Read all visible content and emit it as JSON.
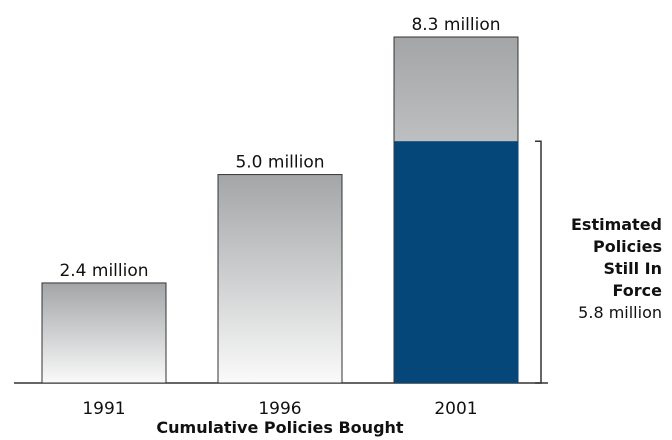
{
  "chart_data": {
    "type": "bar",
    "categories": [
      "1991",
      "1996",
      "2001"
    ],
    "values": [
      2.4,
      5.0,
      8.3
    ],
    "value_labels": [
      "2.4 million",
      "5.0 million",
      "8.3 million"
    ],
    "unit": "million",
    "xlabel": "Cumulative Policies Bought",
    "ylabel": "",
    "ylim": [
      0,
      8.3
    ],
    "grid": false,
    "highlight": {
      "category": "2001",
      "value": 5.8,
      "label_lines": [
        "Estimated",
        "Policies",
        "Still In",
        "Force"
      ],
      "value_label": "5.8 million",
      "color": "#06477a"
    },
    "colors": {
      "bar_gradient_top": "#a3a5a7",
      "bar_gradient_bottom": "#fafafa",
      "bar_stroke": "#333333",
      "axis": "#333333"
    }
  }
}
